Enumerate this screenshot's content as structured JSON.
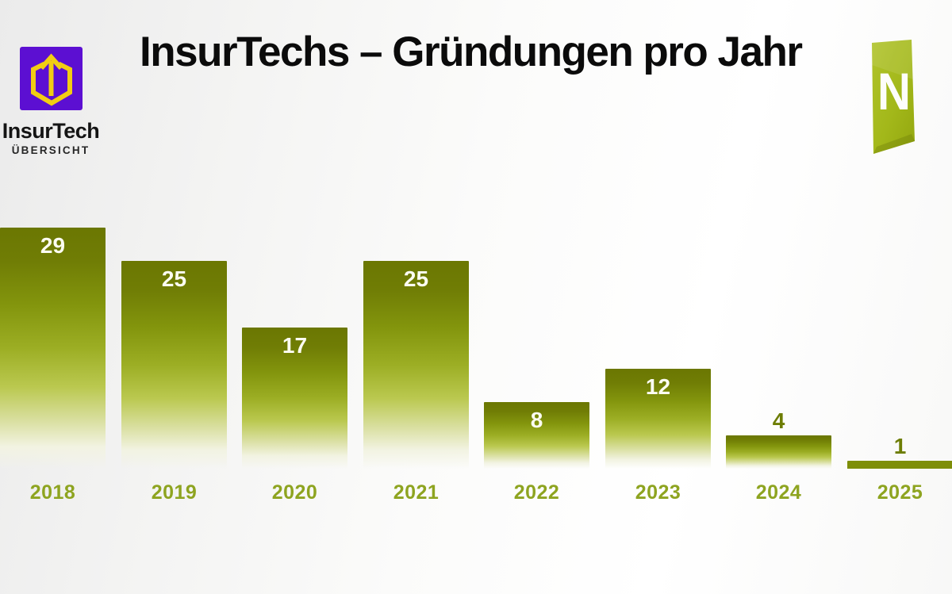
{
  "header": {
    "title": "InsurTechs – Gründungen pro Jahr"
  },
  "brand": {
    "name": "InsurTech",
    "subtitle": "ÜBERSICHT",
    "icon": "hexagon-up-arrow-icon",
    "square_color": "#5c0fd2",
    "icon_color": "#f2cd13"
  },
  "badge": {
    "letter": "N",
    "color": "#a4b91c"
  },
  "chart_data": {
    "type": "bar",
    "title": "InsurTechs – Gründungen pro Jahr",
    "categories": [
      "2018",
      "2019",
      "2020",
      "2021",
      "2022",
      "2023",
      "2024",
      "2025"
    ],
    "values": [
      29,
      25,
      17,
      25,
      8,
      12,
      4,
      1
    ],
    "xlabel": "",
    "ylabel": "",
    "ylim": [
      0,
      31
    ],
    "grid": false,
    "legend": false,
    "bar_gradient_top": "#6b7702",
    "bar_gradient_bottom": "#ffffff",
    "value_label_color_inside": "#fcfcf2",
    "value_label_color_outside": "#6d7d04",
    "category_label_color": "#8ea420"
  }
}
